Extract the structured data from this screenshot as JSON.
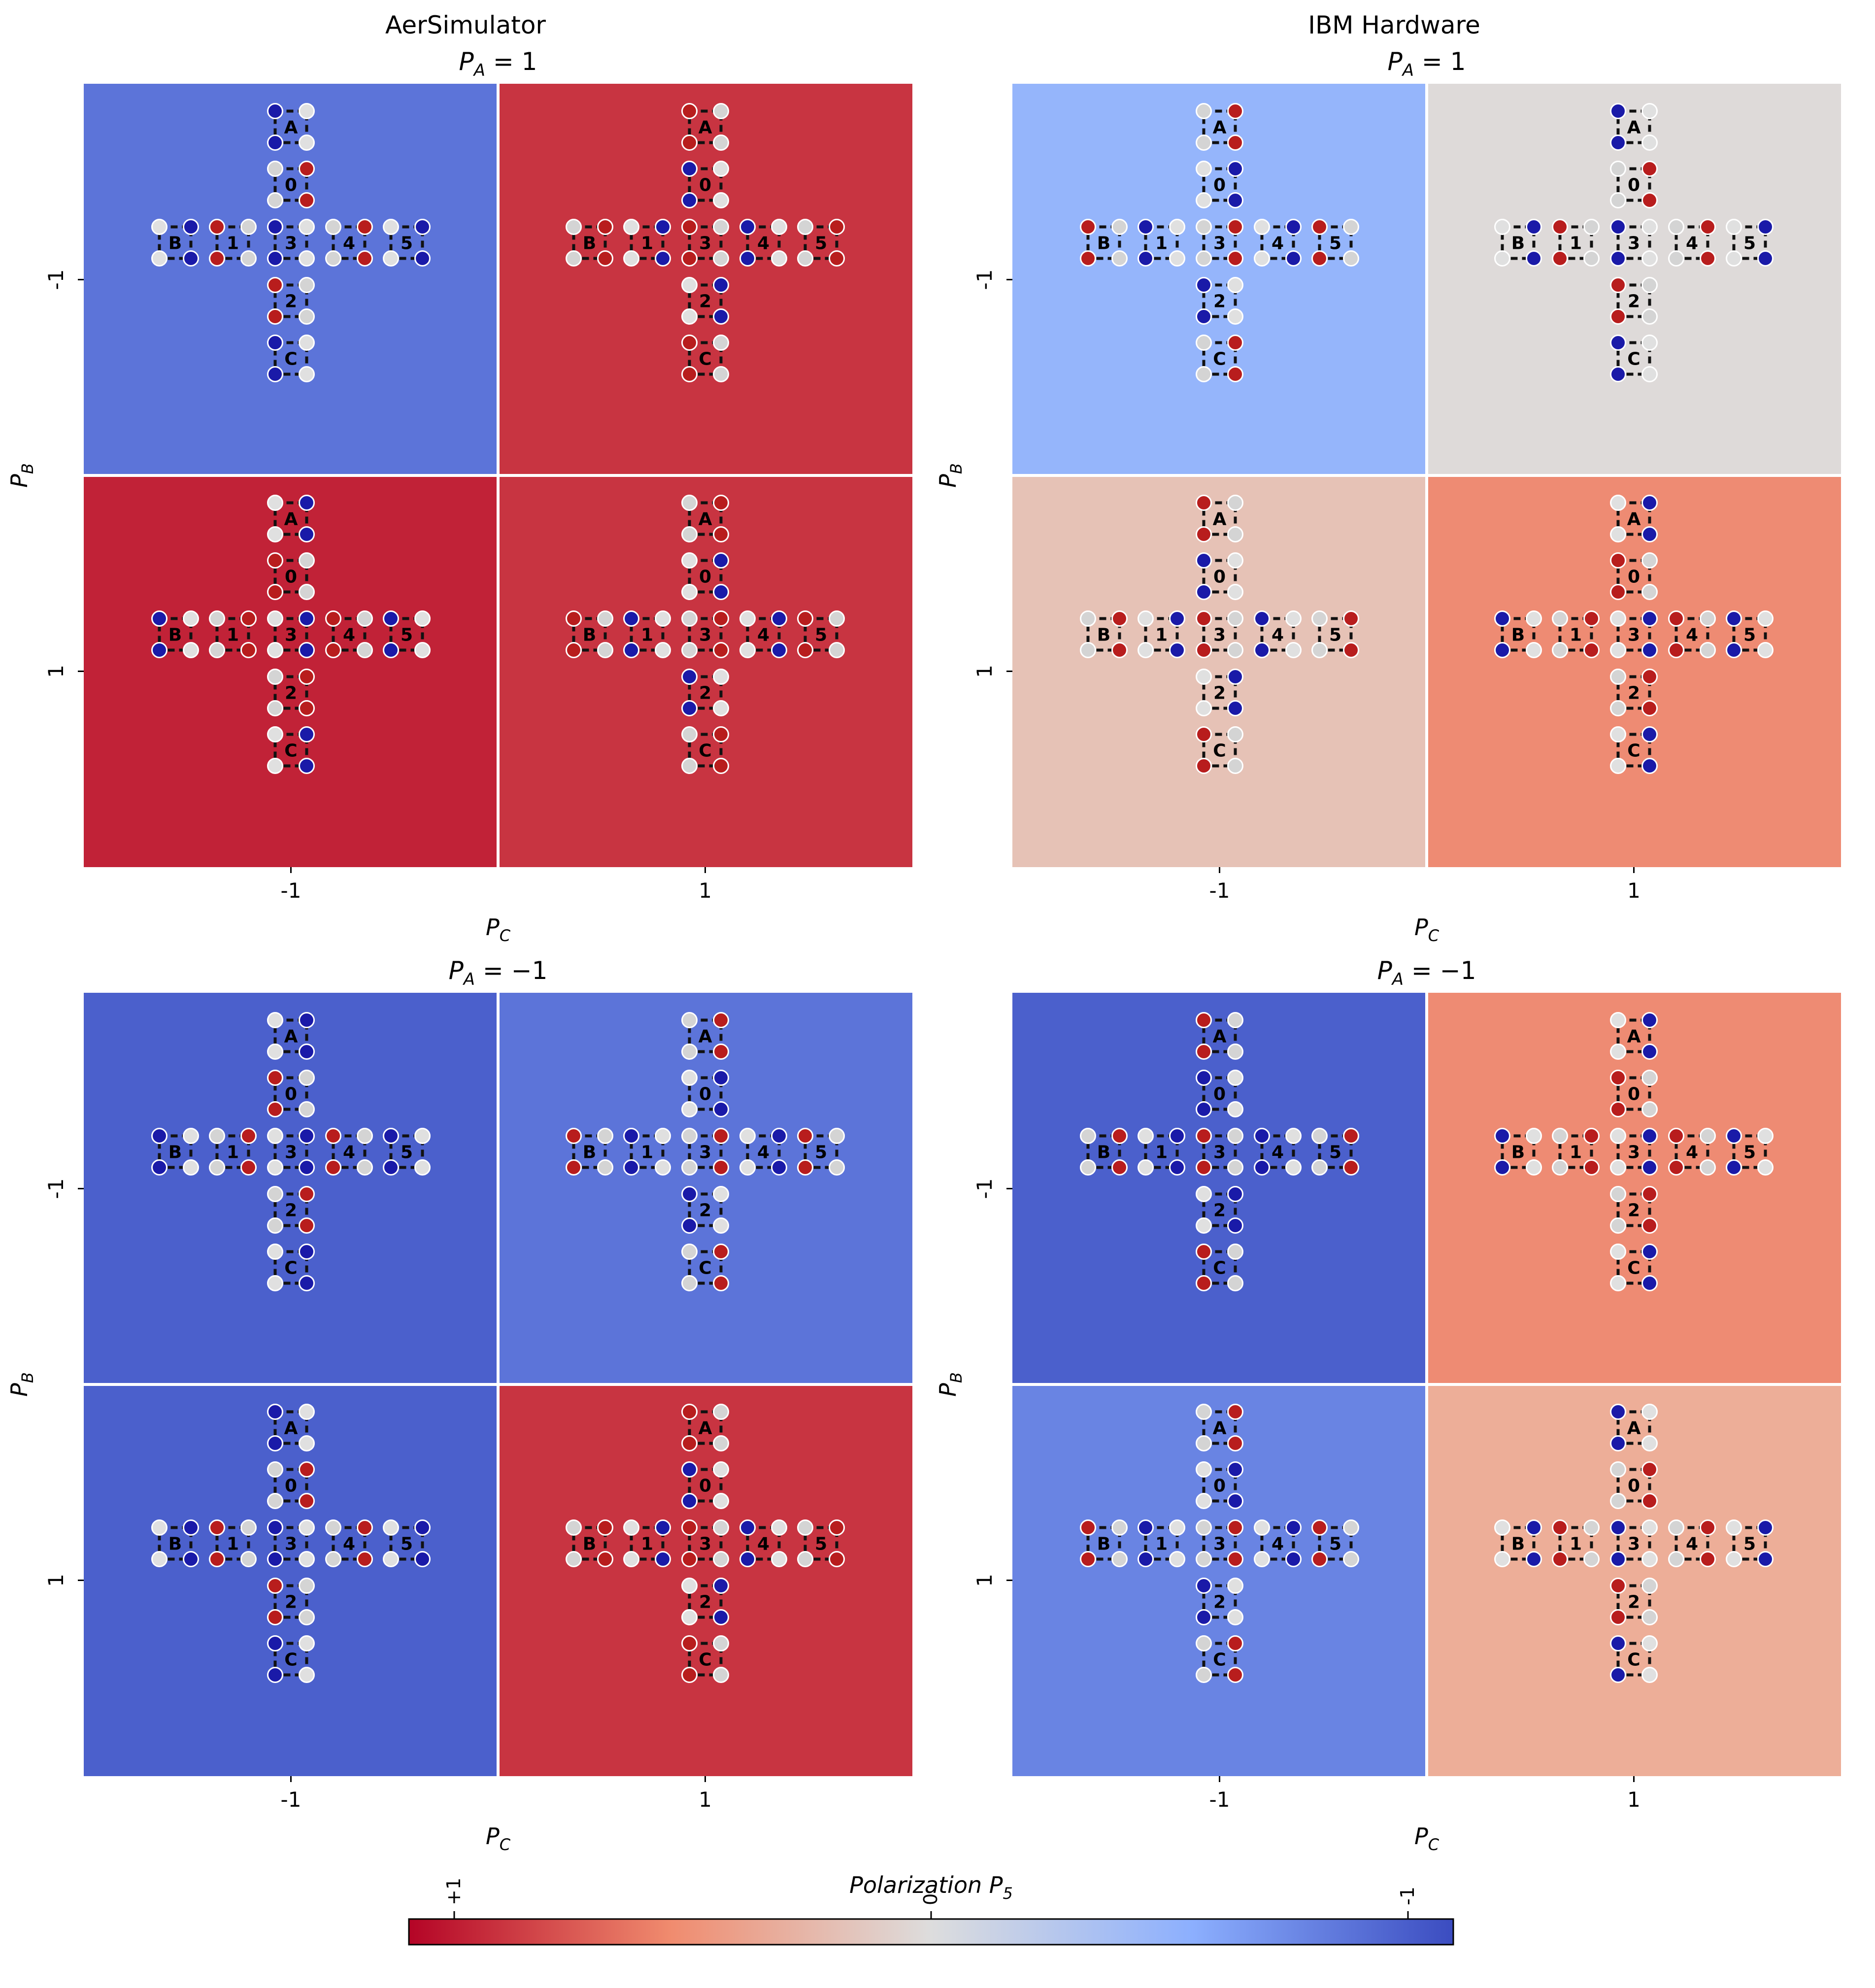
{
  "figure": {
    "column_titles": [
      "AerSimulator",
      "IBM Hardware"
    ],
    "colorbar": {
      "label": "Polarization P",
      "label_subscript": "5",
      "ticks": [
        "+1",
        "0",
        "-1"
      ],
      "tick_values": [
        1,
        0,
        -1
      ],
      "colormap": "coolwarm (reversed: red = +1, blue = -1)"
    },
    "cell_glyph": {
      "labels": [
        "A",
        "0",
        "B",
        "1",
        "3",
        "4",
        "5",
        "2",
        "C"
      ]
    }
  },
  "chart_data": [
    {
      "type": "heatmap",
      "id": "aer-pa-plus",
      "column_title": "AerSimulator",
      "title": "P_A = 1",
      "title_lhs": "P",
      "title_sub": "A",
      "title_rhs": " = 1",
      "xlabel": "P_C",
      "xlabel_main": "P",
      "xlabel_sub": "C",
      "ylabel": "P_B",
      "ylabel_main": "P",
      "ylabel_sub": "B",
      "x_categories": [
        "-1",
        "1"
      ],
      "y_categories": [
        "-1",
        "1"
      ],
      "values": [
        [
          -0.8,
          0.84
        ],
        [
          0.9,
          0.84
        ]
      ],
      "value_meaning": "values[row][col], row = P_B, col = P_C; color encodes polarization P5"
    },
    {
      "type": "heatmap",
      "id": "ibm-pa-plus",
      "column_title": "IBM Hardware",
      "title": "P_A = 1",
      "title_lhs": "P",
      "title_sub": "A",
      "title_rhs": " = 1",
      "xlabel": "P_C",
      "xlabel_main": "P",
      "xlabel_sub": "C",
      "ylabel": "P_B",
      "ylabel_main": "P",
      "ylabel_sub": "B",
      "x_categories": [
        "-1",
        "1"
      ],
      "y_categories": [
        "-1",
        "1"
      ],
      "values": [
        [
          -0.45,
          0.02
        ],
        [
          0.2,
          0.55
        ]
      ],
      "value_meaning": "values[row][col], row = P_B, col = P_C; color encodes polarization P5"
    },
    {
      "type": "heatmap",
      "id": "aer-pa-minus",
      "column_title": "",
      "title": "P_A = -1",
      "title_lhs": "P",
      "title_sub": "A",
      "title_rhs": " = −1",
      "xlabel": "P_C",
      "xlabel_main": "P",
      "xlabel_sub": "C",
      "ylabel": "P_B",
      "ylabel_main": "P",
      "ylabel_sub": "B",
      "x_categories": [
        "-1",
        "1"
      ],
      "y_categories": [
        "-1",
        "1"
      ],
      "values": [
        [
          -0.9,
          -0.8
        ],
        [
          -0.9,
          0.84
        ]
      ],
      "value_meaning": "values[row][col], row = P_B, col = P_C; color encodes polarization P5"
    },
    {
      "type": "heatmap",
      "id": "ibm-pa-minus",
      "column_title": "",
      "title": "P_A = -1",
      "title_lhs": "P",
      "title_sub": "A",
      "title_rhs": " = −1",
      "xlabel": "P_C",
      "xlabel_main": "P",
      "xlabel_sub": "C",
      "ylabel": "P_B",
      "ylabel_main": "P",
      "ylabel_sub": "B",
      "x_categories": [
        "-1",
        "1"
      ],
      "y_categories": [
        "-1",
        "1"
      ],
      "values": [
        [
          -0.9,
          0.55
        ],
        [
          -0.72,
          0.35
        ]
      ],
      "value_meaning": "values[row][col], row = P_B, col = P_C; color encodes polarization P5"
    }
  ]
}
